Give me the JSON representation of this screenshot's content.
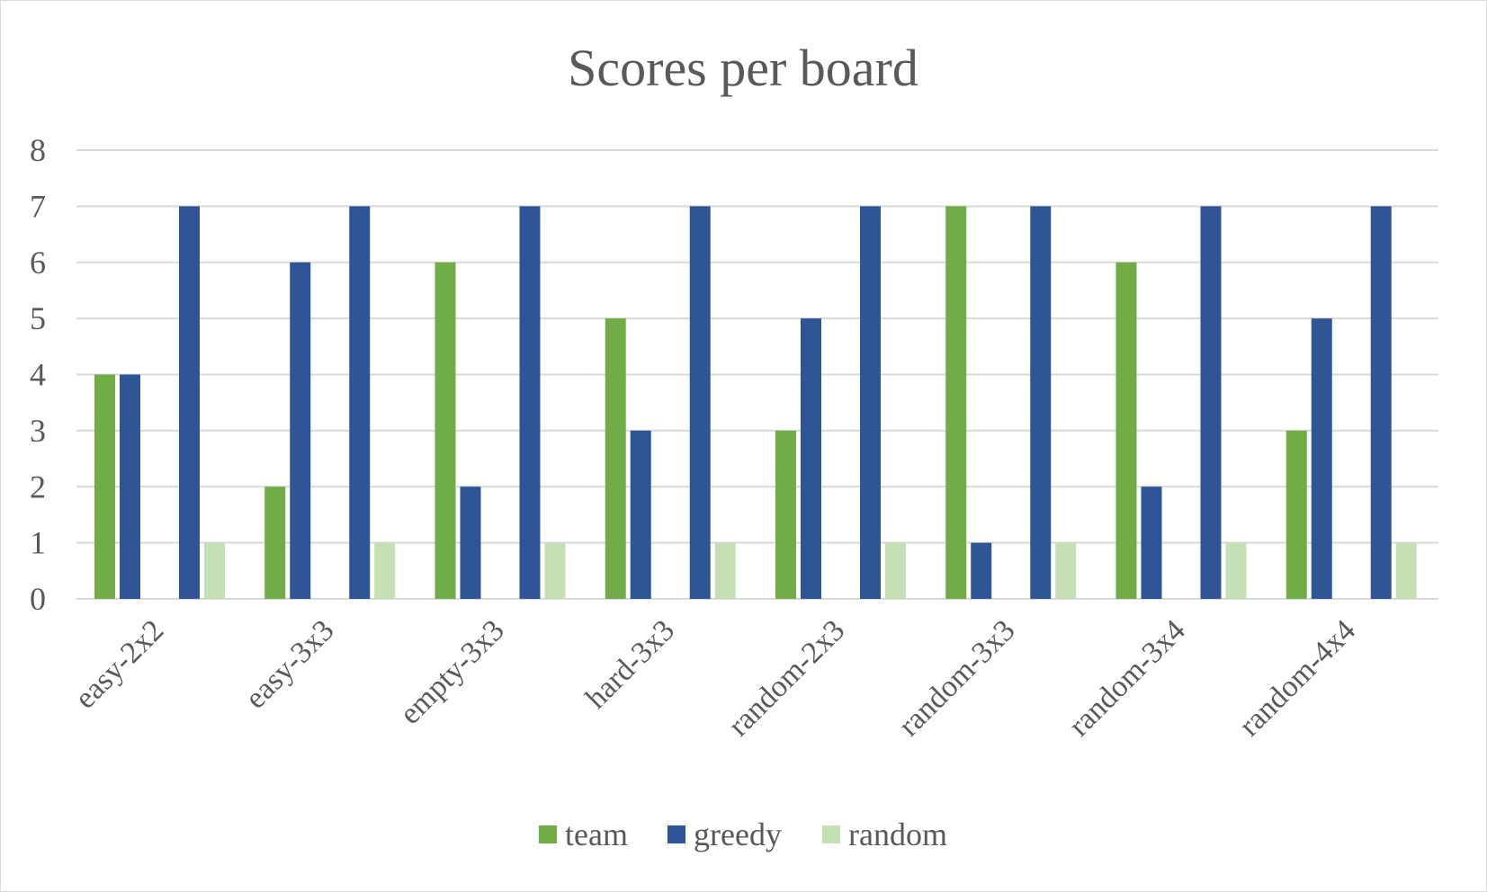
{
  "chart_data": {
    "type": "bar",
    "title": "Scores per board",
    "xlabel": "",
    "ylabel": "",
    "ylim": [
      0,
      8
    ],
    "yticks": [
      0,
      1,
      2,
      3,
      4,
      5,
      6,
      7,
      8
    ],
    "grid": true,
    "legend_position": "bottom",
    "categories": [
      "easy-2x2",
      "easy-3x3",
      "empty-3x3",
      "hard-3x3",
      "random-2x3",
      "random-3x3",
      "random-3x4",
      "random-4x4"
    ],
    "series": [
      {
        "name": "team",
        "color": "#70ad47",
        "values": [
          4,
          2,
          6,
          5,
          3,
          7,
          6,
          3
        ]
      },
      {
        "name": "greedy",
        "color": "#2f5597",
        "values": [
          4,
          6,
          2,
          3,
          5,
          1,
          2,
          5
        ],
        "extra_values": [
          7,
          7,
          7,
          7,
          7,
          7,
          7,
          7
        ]
      },
      {
        "name": "random",
        "color": "#c5e0b4",
        "values": [
          1,
          1,
          1,
          1,
          1,
          1,
          1,
          1
        ]
      }
    ]
  }
}
